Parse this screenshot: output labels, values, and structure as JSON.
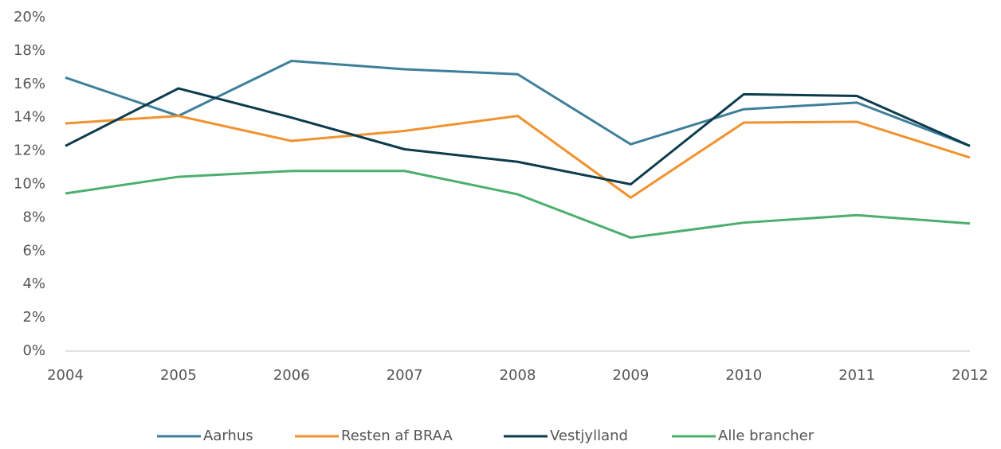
{
  "chart_data": {
    "type": "line",
    "categories": [
      "2004",
      "2005",
      "2006",
      "2007",
      "2008",
      "2009",
      "2010",
      "2011",
      "2012"
    ],
    "series": [
      {
        "name": "Aarhus",
        "color": "#3e7f9a",
        "values": [
          16.4,
          14.1,
          17.4,
          16.9,
          16.6,
          12.4,
          14.5,
          14.9,
          12.3
        ]
      },
      {
        "name": "Resten af BRAA",
        "color": "#f0922e",
        "values": [
          13.65,
          14.1,
          12.6,
          13.2,
          14.1,
          9.2,
          13.7,
          13.75,
          11.6
        ]
      },
      {
        "name": "Vestjylland",
        "color": "#0d3b4c",
        "values": [
          12.3,
          15.75,
          14.0,
          12.1,
          11.35,
          10.0,
          15.4,
          15.3,
          12.3
        ]
      },
      {
        "name": "Alle brancher",
        "color": "#4caf6e",
        "values": [
          9.45,
          10.45,
          10.8,
          10.8,
          9.4,
          6.8,
          7.7,
          8.15,
          7.65
        ]
      }
    ],
    "ylim": [
      0,
      20
    ],
    "yticks": [
      {
        "value": 0,
        "label": "0%"
      },
      {
        "value": 2,
        "label": "2%"
      },
      {
        "value": 4,
        "label": "4%"
      },
      {
        "value": 6,
        "label": "6%"
      },
      {
        "value": 8,
        "label": "8%"
      },
      {
        "value": 10,
        "label": "10%"
      },
      {
        "value": 12,
        "label": "12%"
      },
      {
        "value": 14,
        "label": "14%"
      },
      {
        "value": 16,
        "label": "16%"
      },
      {
        "value": 18,
        "label": "18%"
      },
      {
        "value": 20,
        "label": "20%"
      }
    ],
    "grid": false,
    "legend": "bottom"
  }
}
